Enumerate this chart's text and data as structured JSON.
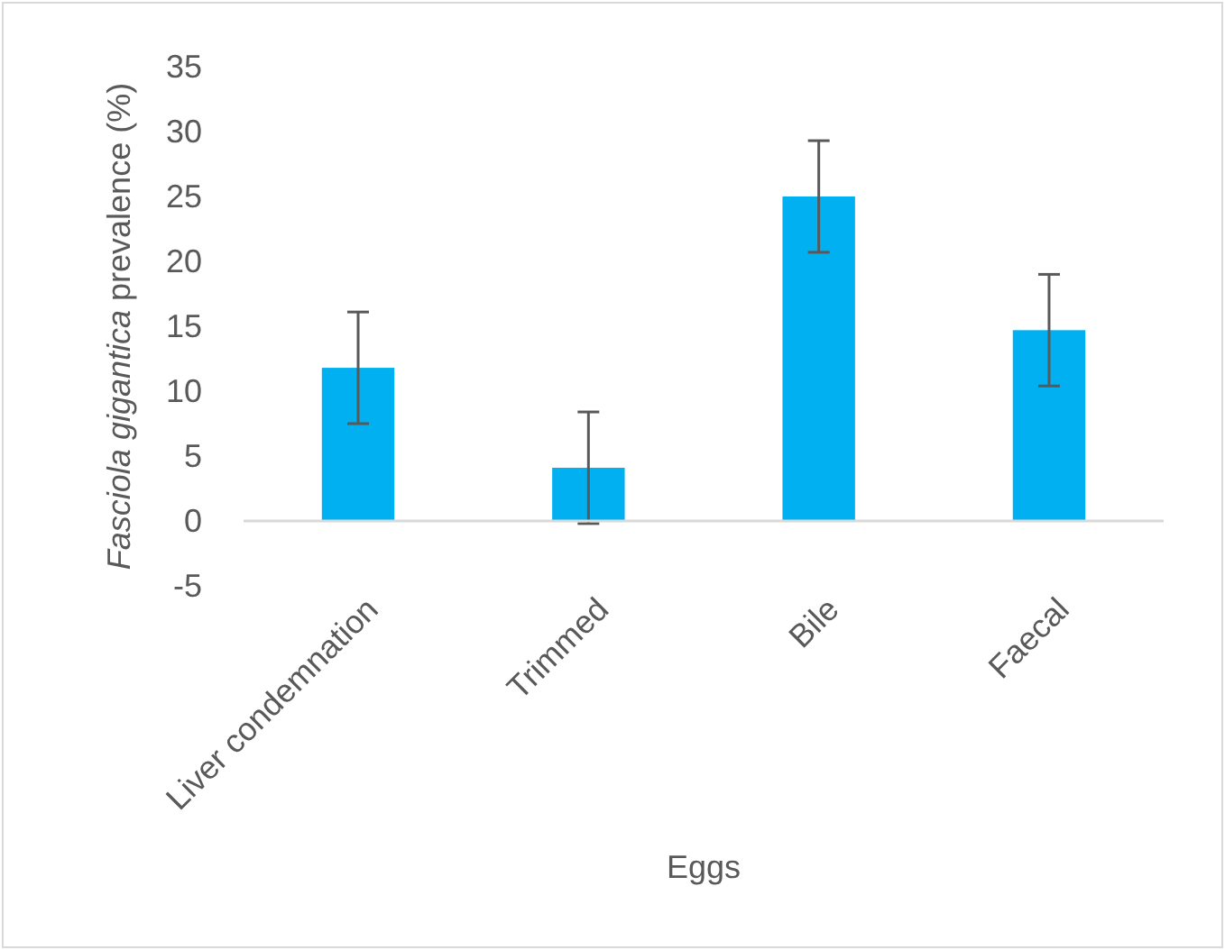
{
  "chart_data": {
    "type": "bar",
    "xlabel": "Eggs",
    "ylabel": "Fasciola gigantica prevalence (%)",
    "categories": [
      "Liver condemnation",
      "Trimmed",
      "Bile",
      "Faecal"
    ],
    "values": [
      11.8,
      4.1,
      25.0,
      14.7
    ],
    "errors": [
      4.3,
      4.3,
      4.3,
      4.3
    ],
    "color": "#00b0f0",
    "ylim": [
      -5,
      35
    ],
    "yticks": [
      -5,
      0,
      5,
      10,
      15,
      20,
      25,
      30,
      35
    ],
    "grid": false
  }
}
